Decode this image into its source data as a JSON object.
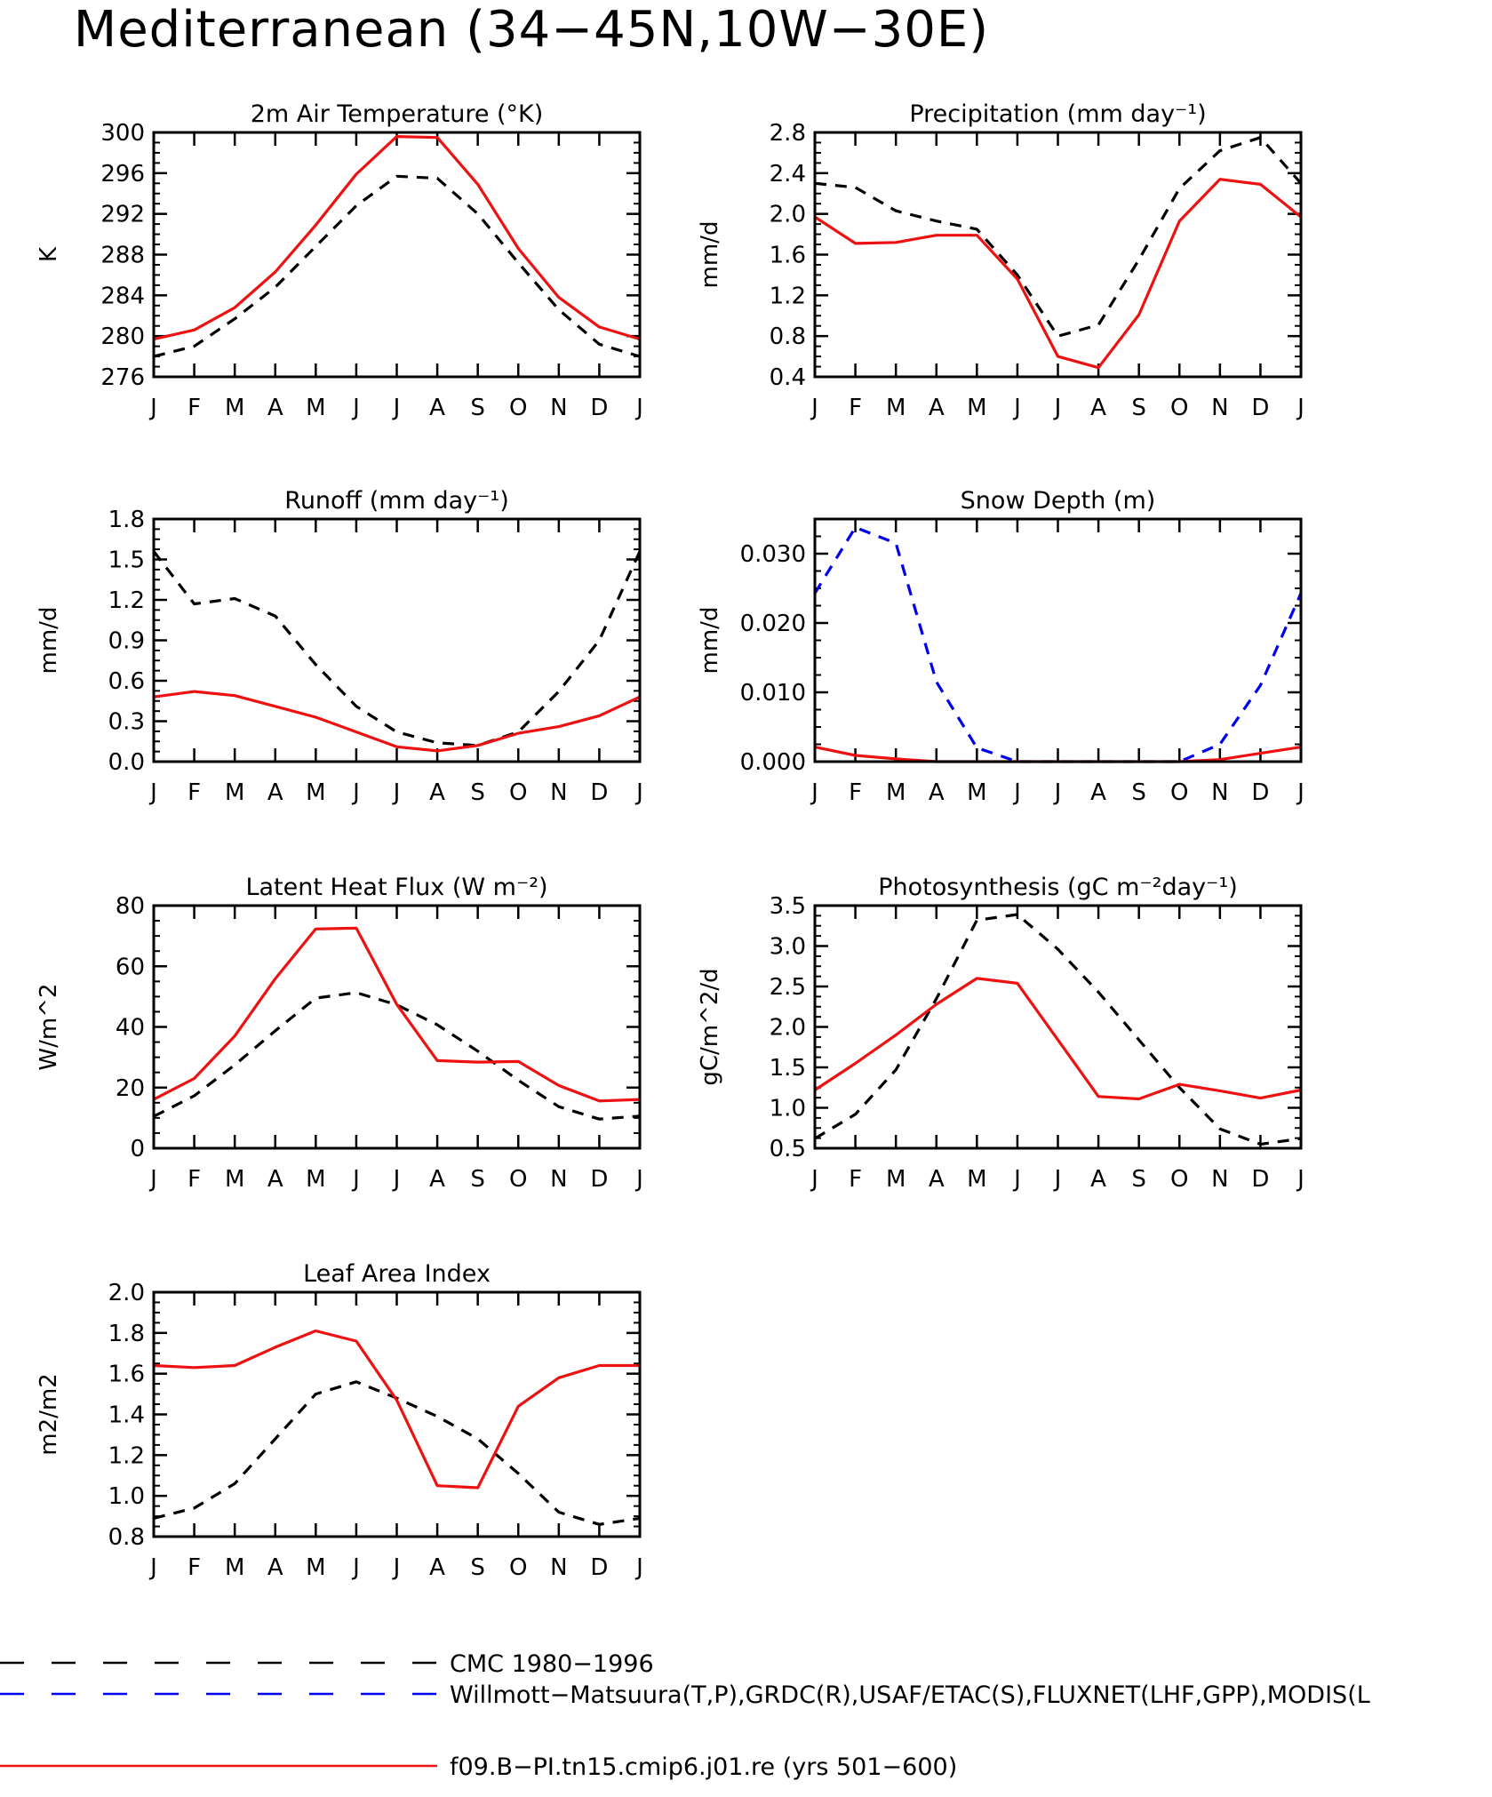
{
  "title": "Mediterranean (34−45N,10W−30E)",
  "colors": {
    "obs_cmc": "#000000",
    "obs_multi": "#0000ee",
    "model": "#ee1111"
  },
  "legend": [
    {
      "series": "cmc",
      "label": "CMC 1980−1996",
      "style": "dashed",
      "color": "#000000"
    },
    {
      "series": "obs",
      "label": "Willmott−Matsuura(T,P),GRDC(R),USAF/ETAC(S),FLUXNET(LHF,GPP),MODIS(L",
      "style": "dashed",
      "color": "#0000ee"
    },
    {
      "series": "model",
      "label": "f09.B−PI.tn15.cmip6.j01.re (yrs 501−600)",
      "style": "solid",
      "color": "#ee1111"
    }
  ],
  "chart_data": [
    {
      "type": "line",
      "title": "2m Air Temperature (°K)",
      "ylabel": "K",
      "categories": [
        "J",
        "F",
        "M",
        "A",
        "M",
        "J",
        "J",
        "A",
        "S",
        "O",
        "N",
        "D",
        "J"
      ],
      "ylim": [
        276,
        300
      ],
      "yticks": [
        276,
        280,
        284,
        288,
        292,
        296,
        300
      ],
      "ytick_labels": [
        "276",
        "280",
        "284",
        "288",
        "292",
        "296",
        "300"
      ],
      "series": [
        {
          "name": "CMC 1980−1996",
          "style": "dashed",
          "color": "#000000",
          "values": [
            278.0,
            279.0,
            281.7,
            284.8,
            288.8,
            292.8,
            295.7,
            295.5,
            292.0,
            287.2,
            282.6,
            279.2,
            278.0
          ]
        },
        {
          "name": "f09.B−PI.tn15.cmip6.j01.re (yrs 501−600)",
          "style": "solid",
          "color": "#ee1111",
          "values": [
            279.7,
            280.6,
            282.8,
            286.3,
            290.9,
            295.9,
            299.6,
            299.5,
            294.9,
            288.6,
            283.8,
            280.9,
            279.7
          ]
        }
      ]
    },
    {
      "type": "line",
      "title": "Precipitation (mm day⁻¹)",
      "ylabel": "mm/d",
      "categories": [
        "J",
        "F",
        "M",
        "A",
        "M",
        "J",
        "J",
        "A",
        "S",
        "O",
        "N",
        "D",
        "J"
      ],
      "ylim": [
        0.4,
        2.8
      ],
      "yticks": [
        0.4,
        0.8,
        1.2,
        1.6,
        2.0,
        2.4,
        2.8
      ],
      "ytick_labels": [
        "0.4",
        "0.8",
        "1.2",
        "1.6",
        "2.0",
        "2.4",
        "2.8"
      ],
      "series": [
        {
          "name": "Willmott−Matsuura(T,P)",
          "style": "dashed",
          "color": "#000000",
          "values": [
            2.3,
            2.26,
            2.03,
            1.93,
            1.85,
            1.4,
            0.8,
            0.91,
            1.55,
            2.25,
            2.62,
            2.75,
            2.3
          ]
        },
        {
          "name": "f09.B−PI.tn15.cmip6.j01.re (yrs 501−600)",
          "style": "solid",
          "color": "#ee1111",
          "values": [
            1.97,
            1.71,
            1.72,
            1.79,
            1.79,
            1.36,
            0.6,
            0.49,
            1.01,
            1.93,
            2.34,
            2.29,
            1.97
          ]
        }
      ]
    },
    {
      "type": "line",
      "title": "Runoff (mm day⁻¹)",
      "ylabel": "mm/d",
      "categories": [
        "J",
        "F",
        "M",
        "A",
        "M",
        "J",
        "J",
        "A",
        "S",
        "O",
        "N",
        "D",
        "J"
      ],
      "ylim": [
        0.0,
        1.8
      ],
      "yticks": [
        0.0,
        0.3,
        0.6,
        0.9,
        1.2,
        1.5,
        1.8
      ],
      "ytick_labels": [
        "0.0",
        "0.3",
        "0.6",
        "0.9",
        "1.2",
        "1.5",
        "1.8"
      ],
      "series": [
        {
          "name": "GRDC(R)",
          "style": "dashed",
          "color": "#000000",
          "values": [
            1.56,
            1.17,
            1.21,
            1.08,
            0.72,
            0.41,
            0.22,
            0.14,
            0.12,
            0.22,
            0.52,
            0.9,
            1.56
          ]
        },
        {
          "name": "f09.B−PI.tn15.cmip6.j01.re (yrs 501−600)",
          "style": "solid",
          "color": "#ee1111",
          "values": [
            0.48,
            0.52,
            0.49,
            0.41,
            0.33,
            0.22,
            0.11,
            0.08,
            0.12,
            0.21,
            0.26,
            0.34,
            0.48
          ]
        }
      ]
    },
    {
      "type": "line",
      "title": "Snow Depth (m)",
      "ylabel": "mm/d",
      "categories": [
        "J",
        "F",
        "M",
        "A",
        "M",
        "J",
        "J",
        "A",
        "S",
        "O",
        "N",
        "D",
        "J"
      ],
      "ylim": [
        0.0,
        0.035
      ],
      "yticks": [
        0.0,
        0.01,
        0.02,
        0.03
      ],
      "ytick_labels": [
        "0.000",
        "0.010",
        "0.020",
        "0.030"
      ],
      "series": [
        {
          "name": "USAF/ETAC(S)",
          "style": "dashed",
          "color": "#0000ee",
          "values": [
            0.0243,
            0.0338,
            0.0315,
            0.0115,
            0.002,
            0.0,
            0.0,
            0.0,
            0.0,
            0.0,
            0.0025,
            0.011,
            0.0243
          ]
        },
        {
          "name": "f09.B−PI.tn15.cmip6.j01.re (yrs 501−600)",
          "style": "solid",
          "color": "#ee1111",
          "values": [
            0.0021,
            0.0009,
            0.0004,
            0.0,
            0.0,
            0.0,
            0.0,
            0.0,
            0.0,
            0.0,
            0.0003,
            0.0012,
            0.0021
          ]
        }
      ]
    },
    {
      "type": "line",
      "title": "Latent Heat Flux (W m⁻²)",
      "ylabel": "W/m^2",
      "categories": [
        "J",
        "F",
        "M",
        "A",
        "M",
        "J",
        "J",
        "A",
        "S",
        "O",
        "N",
        "D",
        "J"
      ],
      "ylim": [
        0,
        80
      ],
      "yticks": [
        0,
        20,
        40,
        60,
        80
      ],
      "ytick_labels": [
        "0",
        "20",
        "40",
        "60",
        "80"
      ],
      "series": [
        {
          "name": "FLUXNET(LHF)",
          "style": "dashed",
          "color": "#000000",
          "values": [
            10.5,
            17.3,
            27.5,
            38.7,
            49.5,
            51.3,
            47.3,
            40.7,
            32.0,
            22.4,
            13.7,
            9.6,
            10.6
          ]
        },
        {
          "name": "f09.B−PI.tn15.cmip6.j01.re (yrs 501−600)",
          "style": "solid",
          "color": "#ee1111",
          "values": [
            16.1,
            23.0,
            37.0,
            55.9,
            72.3,
            72.6,
            47.4,
            28.9,
            28.4,
            28.6,
            20.7,
            15.6,
            16.1
          ]
        }
      ]
    },
    {
      "type": "line",
      "title": "Photosynthesis (gC m⁻²day⁻¹)",
      "ylabel": "gC/m^2/d",
      "categories": [
        "J",
        "F",
        "M",
        "A",
        "M",
        "J",
        "J",
        "A",
        "S",
        "O",
        "N",
        "D",
        "J"
      ],
      "ylim": [
        0.5,
        3.5
      ],
      "yticks": [
        0.5,
        1.0,
        1.5,
        2.0,
        2.5,
        3.0,
        3.5
      ],
      "ytick_labels": [
        "0.5",
        "1.0",
        "1.5",
        "2.0",
        "2.5",
        "3.0",
        "3.5"
      ],
      "series": [
        {
          "name": "FLUXNET(GPP)",
          "style": "dashed",
          "color": "#000000",
          "values": [
            0.62,
            0.92,
            1.47,
            2.35,
            3.32,
            3.39,
            2.96,
            2.43,
            1.84,
            1.25,
            0.74,
            0.55,
            0.62
          ]
        },
        {
          "name": "f09.B−PI.tn15.cmip6.j01.re (yrs 501−600)",
          "style": "solid",
          "color": "#ee1111",
          "values": [
            1.22,
            1.55,
            1.9,
            2.28,
            2.6,
            2.54,
            1.84,
            1.14,
            1.11,
            1.29,
            1.21,
            1.12,
            1.22
          ]
        }
      ]
    },
    {
      "type": "line",
      "title": "Leaf Area Index",
      "ylabel": "m2/m2",
      "categories": [
        "J",
        "F",
        "M",
        "A",
        "M",
        "J",
        "J",
        "A",
        "S",
        "O",
        "N",
        "D",
        "J"
      ],
      "ylim": [
        0.8,
        2.0
      ],
      "yticks": [
        0.8,
        1.0,
        1.2,
        1.4,
        1.6,
        1.8,
        2.0
      ],
      "ytick_labels": [
        "0.8",
        "1.0",
        "1.2",
        "1.4",
        "1.6",
        "1.8",
        "2.0"
      ],
      "series": [
        {
          "name": "MODIS(LAI)",
          "style": "dashed",
          "color": "#000000",
          "values": [
            0.89,
            0.94,
            1.06,
            1.28,
            1.5,
            1.56,
            1.48,
            1.39,
            1.28,
            1.11,
            0.92,
            0.86,
            0.89
          ]
        },
        {
          "name": "f09.B−PI.tn15.cmip6.j01.re (yrs 501−600)",
          "style": "solid",
          "color": "#ee1111",
          "values": [
            1.64,
            1.63,
            1.64,
            1.73,
            1.81,
            1.76,
            1.47,
            1.05,
            1.04,
            1.44,
            1.58,
            1.64,
            1.64
          ]
        }
      ]
    }
  ]
}
